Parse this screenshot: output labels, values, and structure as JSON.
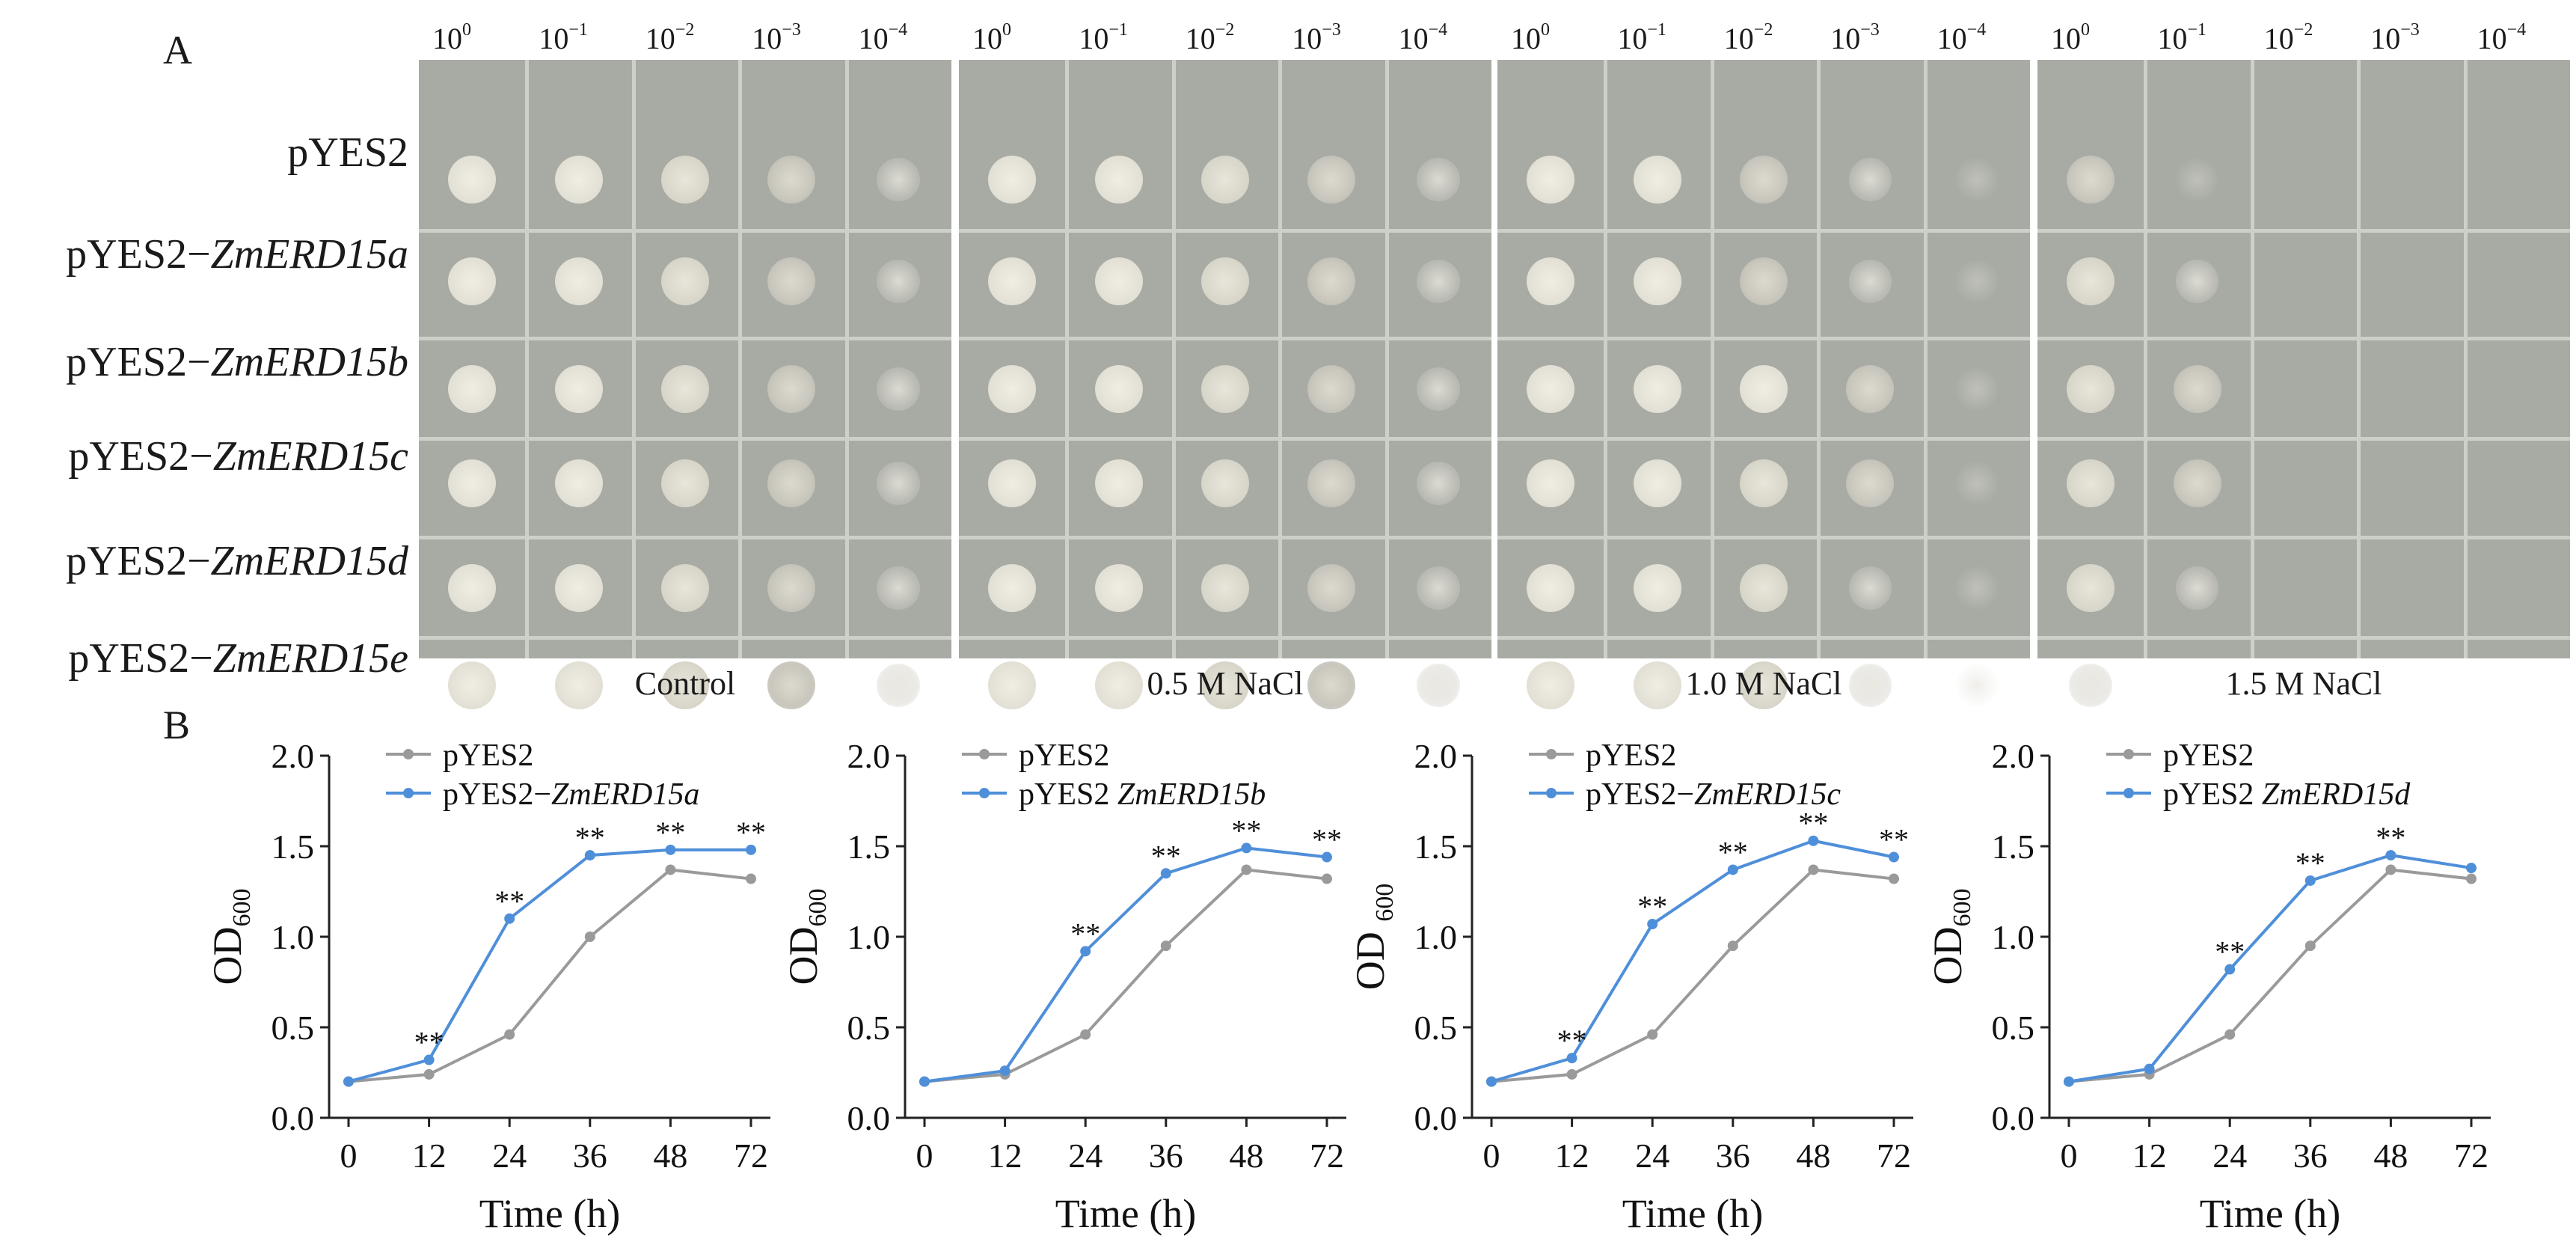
{
  "panel_a": {
    "letter": "A",
    "dilutions": [
      "10",
      "10",
      "10",
      "10",
      "10"
    ],
    "dilution_exponents": [
      "0",
      "−1",
      "−2",
      "−3",
      "−4"
    ],
    "strains": [
      {
        "prefix": "pYES2",
        "gene": ""
      },
      {
        "prefix": "pYES2−",
        "gene": "ZmERD15a"
      },
      {
        "prefix": "pYES2−",
        "gene": "ZmERD15b"
      },
      {
        "prefix": "pYES2−",
        "gene": "ZmERD15c"
      },
      {
        "prefix": "pYES2−",
        "gene": "ZmERD15d"
      },
      {
        "prefix": "pYES2−",
        "gene": "ZmERD15e"
      }
    ],
    "conditions": [
      "Control",
      "0.5 M NaCl",
      "1.0 M NaCl",
      "1.5 M NaCl"
    ],
    "growth_levels": [
      [
        [
          5,
          5,
          4,
          3,
          2
        ],
        [
          5,
          5,
          4,
          3,
          2
        ],
        [
          5,
          5,
          4,
          3,
          2
        ],
        [
          5,
          5,
          4,
          3,
          2
        ],
        [
          5,
          5,
          4,
          3,
          2
        ],
        [
          5,
          5,
          4,
          3,
          2
        ]
      ],
      [
        [
          5,
          5,
          4,
          3,
          2
        ],
        [
          5,
          5,
          4,
          3,
          2
        ],
        [
          5,
          5,
          4,
          3,
          2
        ],
        [
          5,
          5,
          4,
          3,
          2
        ],
        [
          5,
          5,
          4,
          3,
          2
        ],
        [
          5,
          5,
          4,
          3,
          2
        ]
      ],
      [
        [
          5,
          5,
          3,
          2,
          1
        ],
        [
          5,
          5,
          3,
          2,
          1
        ],
        [
          5,
          5,
          5,
          3,
          1
        ],
        [
          5,
          5,
          4,
          3,
          1
        ],
        [
          5,
          5,
          4,
          2,
          1
        ],
        [
          5,
          5,
          4,
          2,
          1
        ]
      ],
      [
        [
          3,
          1,
          0,
          0,
          0
        ],
        [
          4,
          2,
          0,
          0,
          0
        ],
        [
          4,
          3,
          0,
          0,
          0
        ],
        [
          4,
          3,
          0,
          0,
          0
        ],
        [
          4,
          2,
          0,
          0,
          0
        ],
        [
          2,
          0,
          0,
          0,
          0
        ]
      ]
    ],
    "colors": {
      "plate": "#a7aba4",
      "grid": "#cdd0c8",
      "colony": "#e4e1d6"
    }
  },
  "panel_b": {
    "letter": "B",
    "colors": {
      "control": "#9a9a9a",
      "overexpression": "#4f8fd9"
    }
  },
  "chart_data": [
    {
      "type": "line",
      "xlabel": "Time (h)",
      "ylabel": "OD600",
      "ylabel_main": "OD",
      "ylabel_sub": "600",
      "x": [
        0,
        12,
        24,
        36,
        48,
        72
      ],
      "ylim": [
        0.0,
        2.0
      ],
      "yticks": [
        "0.0",
        "0.5",
        "1.0",
        "1.5",
        "2.0"
      ],
      "series": [
        {
          "name": "pYES2",
          "legend_prefix": "pYES2",
          "legend_gene": "",
          "values": [
            0.2,
            0.24,
            0.46,
            1.0,
            1.37,
            1.32
          ]
        },
        {
          "name": "pYES2−ZmERD15a",
          "legend_prefix": "pYES2−",
          "legend_gene": "ZmERD15a",
          "values": [
            0.2,
            0.32,
            1.1,
            1.45,
            1.48,
            1.48
          ]
        }
      ],
      "significance": [
        "",
        "**",
        "**",
        "**",
        "**",
        "**"
      ]
    },
    {
      "type": "line",
      "xlabel": "Time (h)",
      "ylabel": "OD600",
      "ylabel_main": "OD",
      "ylabel_sub": "600",
      "x": [
        0,
        12,
        24,
        36,
        48,
        72
      ],
      "ylim": [
        0.0,
        2.0
      ],
      "yticks": [
        "0.0",
        "0.5",
        "1.0",
        "1.5",
        "2.0"
      ],
      "series": [
        {
          "name": "pYES2",
          "legend_prefix": "pYES2",
          "legend_gene": "",
          "values": [
            0.2,
            0.24,
            0.46,
            0.95,
            1.37,
            1.32
          ]
        },
        {
          "name": "pYES2 ZmERD15b",
          "legend_prefix": "pYES2 ",
          "legend_gene": "ZmERD15b",
          "values": [
            0.2,
            0.26,
            0.92,
            1.35,
            1.49,
            1.44
          ]
        }
      ],
      "significance": [
        "",
        "",
        "**",
        "**",
        "**",
        "**"
      ]
    },
    {
      "type": "line",
      "xlabel": "Time (h)",
      "ylabel": "OD 600",
      "ylabel_main": "OD ",
      "ylabel_sub": "600",
      "x": [
        0,
        12,
        24,
        36,
        48,
        72
      ],
      "ylim": [
        0.0,
        2.0
      ],
      "yticks": [
        "0.0",
        "0.5",
        "1.0",
        "1.5",
        "2.0"
      ],
      "series": [
        {
          "name": "pYES2",
          "legend_prefix": "pYES2",
          "legend_gene": "",
          "values": [
            0.2,
            0.24,
            0.46,
            0.95,
            1.37,
            1.32
          ]
        },
        {
          "name": "pYES2−ZmERD15c",
          "legend_prefix": "pYES2−",
          "legend_gene": "ZmERD15c",
          "values": [
            0.2,
            0.33,
            1.07,
            1.37,
            1.53,
            1.44
          ]
        }
      ],
      "significance": [
        "",
        "**",
        "**",
        "**",
        "**",
        "**"
      ]
    },
    {
      "type": "line",
      "xlabel": "Time (h)",
      "ylabel": "OD600",
      "ylabel_main": "OD",
      "ylabel_sub": "600",
      "x": [
        0,
        12,
        24,
        36,
        48,
        72
      ],
      "ylim": [
        0.0,
        2.0
      ],
      "yticks": [
        "0.0",
        "0.5",
        "1.0",
        "1.5",
        "2.0"
      ],
      "series": [
        {
          "name": "pYES2",
          "legend_prefix": "pYES2",
          "legend_gene": "",
          "values": [
            0.2,
            0.24,
            0.46,
            0.95,
            1.37,
            1.32
          ]
        },
        {
          "name": "pYES2 ZmERD15d",
          "legend_prefix": "pYES2 ",
          "legend_gene": "ZmERD15d",
          "values": [
            0.2,
            0.27,
            0.82,
            1.31,
            1.45,
            1.38
          ]
        }
      ],
      "significance": [
        "",
        "",
        "**",
        "**",
        "**",
        ""
      ]
    }
  ]
}
